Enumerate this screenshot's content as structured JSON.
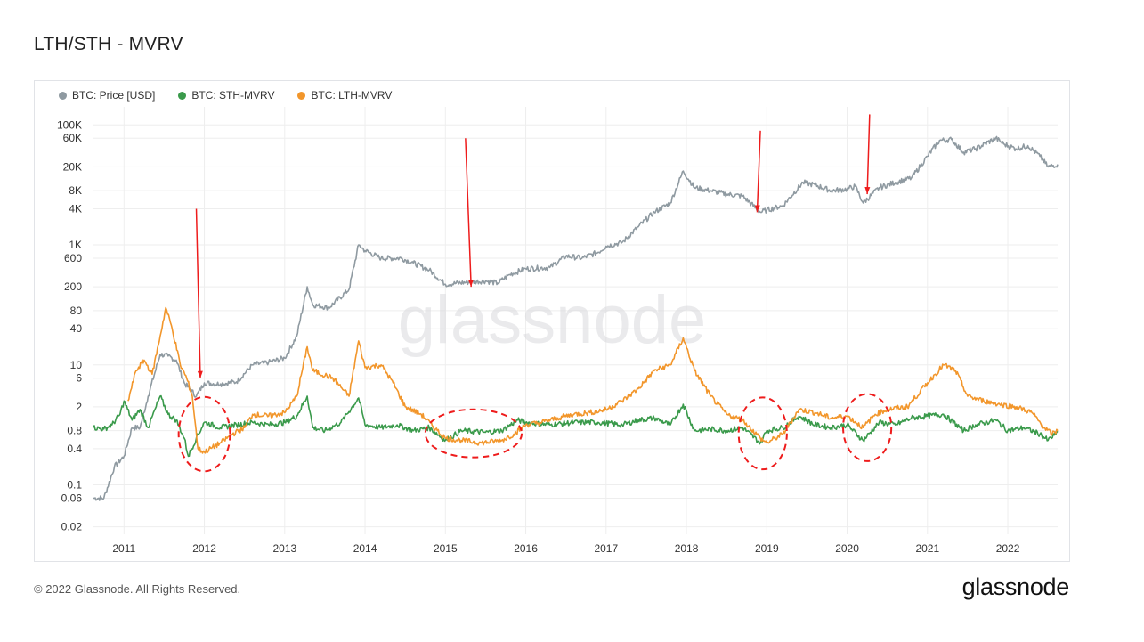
{
  "page": {
    "title": "LTH/STH - MVRV",
    "copyright": "© 2022 Glassnode. All Rights Reserved.",
    "logo_text": "glassnode",
    "watermark": "glassnode"
  },
  "colors": {
    "price": "#8f9aa1",
    "sth": "#3a9a4b",
    "lth": "#f2962b",
    "annotation": "#ee1c1c",
    "grid": "#eeeeee"
  },
  "chart_data": {
    "type": "line",
    "title": "LTH/STH - MVRV",
    "y_scale": "log",
    "ylim": [
      0.015,
      200000
    ],
    "xlim": [
      2010.62,
      2022.62
    ],
    "grid": true,
    "legend_position": "top-left",
    "legend": [
      "BTC: Price [USD]",
      "BTC: STH-MVRV",
      "BTC: LTH-MVRV"
    ],
    "x_ticks": [
      2011,
      2012,
      2013,
      2014,
      2015,
      2016,
      2017,
      2018,
      2019,
      2020,
      2021,
      2022
    ],
    "x_tick_labels": [
      "2011",
      "2012",
      "2013",
      "2014",
      "2015",
      "2016",
      "2017",
      "2018",
      "2019",
      "2020",
      "2021",
      "2022"
    ],
    "y_ticks": [
      0.02,
      0.06,
      0.1,
      0.4,
      0.8,
      2,
      6,
      10,
      40,
      80,
      200,
      600,
      1000,
      4000,
      8000,
      20000,
      60000,
      100000
    ],
    "y_tick_labels": [
      "0.02",
      "0.06",
      "0.1",
      "0.4",
      "0.8",
      "2",
      "6",
      "10",
      "40",
      "80",
      "200",
      "600",
      "1K",
      "4K",
      "8K",
      "20K",
      "60K",
      "100K"
    ],
    "series": [
      {
        "name": "BTC: Price [USD]",
        "color": "#8f9aa1",
        "points": [
          [
            2010.62,
            0.06
          ],
          [
            2010.75,
            0.06
          ],
          [
            2010.88,
            0.2
          ],
          [
            2011.0,
            0.3
          ],
          [
            2011.1,
            0.9
          ],
          [
            2011.2,
            0.9
          ],
          [
            2011.3,
            3
          ],
          [
            2011.45,
            15
          ],
          [
            2011.55,
            14
          ],
          [
            2011.65,
            12
          ],
          [
            2011.75,
            5
          ],
          [
            2011.9,
            3
          ],
          [
            2012.0,
            5
          ],
          [
            2012.2,
            4.8
          ],
          [
            2012.4,
            5.2
          ],
          [
            2012.6,
            10
          ],
          [
            2012.8,
            11
          ],
          [
            2013.0,
            13
          ],
          [
            2013.15,
            30
          ],
          [
            2013.28,
            200
          ],
          [
            2013.35,
            100
          ],
          [
            2013.55,
            90
          ],
          [
            2013.8,
            180
          ],
          [
            2013.92,
            1000
          ],
          [
            2014.0,
            800
          ],
          [
            2014.2,
            600
          ],
          [
            2014.45,
            600
          ],
          [
            2014.6,
            500
          ],
          [
            2014.8,
            380
          ],
          [
            2015.0,
            220
          ],
          [
            2015.3,
            240
          ],
          [
            2015.5,
            250
          ],
          [
            2015.65,
            230
          ],
          [
            2015.8,
            320
          ],
          [
            2016.0,
            400
          ],
          [
            2016.3,
            420
          ],
          [
            2016.5,
            650
          ],
          [
            2016.7,
            600
          ],
          [
            2016.9,
            750
          ],
          [
            2017.0,
            950
          ],
          [
            2017.2,
            1100
          ],
          [
            2017.4,
            2000
          ],
          [
            2017.6,
            3500
          ],
          [
            2017.8,
            5000
          ],
          [
            2017.96,
            17000
          ],
          [
            2018.1,
            9000
          ],
          [
            2018.3,
            8000
          ],
          [
            2018.5,
            7000
          ],
          [
            2018.7,
            6500
          ],
          [
            2018.92,
            3500
          ],
          [
            2019.0,
            3800
          ],
          [
            2019.2,
            4500
          ],
          [
            2019.45,
            11000
          ],
          [
            2019.6,
            10000
          ],
          [
            2019.8,
            8000
          ],
          [
            2020.0,
            8500
          ],
          [
            2020.1,
            9500
          ],
          [
            2020.2,
            5000
          ],
          [
            2020.4,
            9000
          ],
          [
            2020.6,
            11000
          ],
          [
            2020.8,
            13000
          ],
          [
            2021.0,
            30000
          ],
          [
            2021.15,
            55000
          ],
          [
            2021.3,
            57000
          ],
          [
            2021.45,
            35000
          ],
          [
            2021.6,
            40000
          ],
          [
            2021.85,
            60000
          ],
          [
            2021.95,
            48000
          ],
          [
            2022.1,
            40000
          ],
          [
            2022.25,
            45000
          ],
          [
            2022.4,
            30000
          ],
          [
            2022.5,
            20000
          ],
          [
            2022.62,
            22000
          ]
        ]
      },
      {
        "name": "BTC: STH-MVRV",
        "color": "#3a9a4b",
        "points": [
          [
            2010.62,
            0.9
          ],
          [
            2010.75,
            0.85
          ],
          [
            2010.85,
            1.0
          ],
          [
            2010.95,
            1.5
          ],
          [
            2011.0,
            2.5
          ],
          [
            2011.1,
            1.2
          ],
          [
            2011.2,
            1.8
          ],
          [
            2011.3,
            0.9
          ],
          [
            2011.4,
            2.0
          ],
          [
            2011.45,
            3.0
          ],
          [
            2011.55,
            1.5
          ],
          [
            2011.65,
            1.2
          ],
          [
            2011.75,
            0.6
          ],
          [
            2011.8,
            0.3
          ],
          [
            2011.9,
            0.6
          ],
          [
            2012.0,
            1.1
          ],
          [
            2012.2,
            0.9
          ],
          [
            2012.4,
            1.0
          ],
          [
            2012.6,
            1.1
          ],
          [
            2012.8,
            1.0
          ],
          [
            2013.0,
            1.1
          ],
          [
            2013.15,
            1.4
          ],
          [
            2013.28,
            3.0
          ],
          [
            2013.35,
            0.9
          ],
          [
            2013.5,
            0.8
          ],
          [
            2013.7,
            1.1
          ],
          [
            2013.92,
            2.8
          ],
          [
            2014.0,
            1.0
          ],
          [
            2014.2,
            0.9
          ],
          [
            2014.4,
            1.0
          ],
          [
            2014.6,
            0.8
          ],
          [
            2014.8,
            0.9
          ],
          [
            2015.0,
            0.55
          ],
          [
            2015.2,
            0.8
          ],
          [
            2015.5,
            0.75
          ],
          [
            2015.7,
            0.8
          ],
          [
            2015.9,
            1.2
          ],
          [
            2016.0,
            1.1
          ],
          [
            2016.3,
            1.0
          ],
          [
            2016.6,
            1.1
          ],
          [
            2016.9,
            1.1
          ],
          [
            2017.2,
            1.0
          ],
          [
            2017.4,
            1.2
          ],
          [
            2017.6,
            1.3
          ],
          [
            2017.8,
            1.0
          ],
          [
            2017.96,
            2.2
          ],
          [
            2018.1,
            0.8
          ],
          [
            2018.3,
            0.85
          ],
          [
            2018.5,
            0.8
          ],
          [
            2018.7,
            0.9
          ],
          [
            2018.92,
            0.5
          ],
          [
            2019.0,
            0.8
          ],
          [
            2019.2,
            0.9
          ],
          [
            2019.4,
            1.4
          ],
          [
            2019.6,
            1.0
          ],
          [
            2019.8,
            0.9
          ],
          [
            2020.0,
            1.0
          ],
          [
            2020.2,
            0.55
          ],
          [
            2020.4,
            1.1
          ],
          [
            2020.6,
            1.0
          ],
          [
            2020.8,
            1.3
          ],
          [
            2021.0,
            1.4
          ],
          [
            2021.2,
            1.5
          ],
          [
            2021.45,
            0.8
          ],
          [
            2021.6,
            1.0
          ],
          [
            2021.85,
            1.2
          ],
          [
            2022.0,
            0.8
          ],
          [
            2022.2,
            0.9
          ],
          [
            2022.4,
            0.7
          ],
          [
            2022.5,
            0.55
          ],
          [
            2022.62,
            0.75
          ]
        ]
      },
      {
        "name": "BTC: LTH-MVRV",
        "color": "#f2962b",
        "points": [
          [
            2011.05,
            2.5
          ],
          [
            2011.15,
            8
          ],
          [
            2011.25,
            12
          ],
          [
            2011.35,
            7
          ],
          [
            2011.45,
            30
          ],
          [
            2011.52,
            90
          ],
          [
            2011.6,
            40
          ],
          [
            2011.7,
            10
          ],
          [
            2011.78,
            6
          ],
          [
            2011.85,
            3
          ],
          [
            2011.92,
            0.4
          ],
          [
            2012.0,
            0.35
          ],
          [
            2012.2,
            0.5
          ],
          [
            2012.35,
            0.7
          ],
          [
            2012.5,
            0.9
          ],
          [
            2012.6,
            1.5
          ],
          [
            2012.8,
            1.4
          ],
          [
            2013.0,
            1.6
          ],
          [
            2013.15,
            3
          ],
          [
            2013.28,
            20
          ],
          [
            2013.35,
            8
          ],
          [
            2013.6,
            6
          ],
          [
            2013.8,
            3
          ],
          [
            2013.92,
            25
          ],
          [
            2014.0,
            9
          ],
          [
            2014.2,
            10
          ],
          [
            2014.35,
            5
          ],
          [
            2014.5,
            2
          ],
          [
            2014.7,
            1.5
          ],
          [
            2014.9,
            0.8
          ],
          [
            2015.0,
            0.6
          ],
          [
            2015.2,
            0.55
          ],
          [
            2015.45,
            0.5
          ],
          [
            2015.7,
            0.55
          ],
          [
            2015.85,
            0.7
          ],
          [
            2016.0,
            1.0
          ],
          [
            2016.2,
            1.1
          ],
          [
            2016.4,
            1.3
          ],
          [
            2016.6,
            1.5
          ],
          [
            2016.8,
            1.6
          ],
          [
            2017.0,
            1.8
          ],
          [
            2017.2,
            2.5
          ],
          [
            2017.4,
            4
          ],
          [
            2017.6,
            8
          ],
          [
            2017.8,
            10
          ],
          [
            2017.96,
            28
          ],
          [
            2018.1,
            8
          ],
          [
            2018.3,
            3
          ],
          [
            2018.5,
            1.5
          ],
          [
            2018.7,
            1.2
          ],
          [
            2018.92,
            0.6
          ],
          [
            2019.0,
            0.5
          ],
          [
            2019.2,
            0.7
          ],
          [
            2019.4,
            1.8
          ],
          [
            2019.6,
            1.6
          ],
          [
            2019.8,
            1.3
          ],
          [
            2020.0,
            1.4
          ],
          [
            2020.2,
            0.9
          ],
          [
            2020.35,
            1.5
          ],
          [
            2020.5,
            1.8
          ],
          [
            2020.75,
            2
          ],
          [
            2021.0,
            5
          ],
          [
            2021.2,
            10
          ],
          [
            2021.35,
            8
          ],
          [
            2021.5,
            3
          ],
          [
            2021.7,
            2.5
          ],
          [
            2021.9,
            2.2
          ],
          [
            2022.1,
            2
          ],
          [
            2022.3,
            1.6
          ],
          [
            2022.45,
            0.9
          ],
          [
            2022.55,
            0.7
          ],
          [
            2022.62,
            0.8
          ]
        ]
      }
    ],
    "annotations": {
      "arrows": [
        {
          "from": [
            2011.9,
            4000
          ],
          "to": [
            2011.95,
            6
          ]
        },
        {
          "from": [
            2015.25,
            60000
          ],
          "to": [
            2015.32,
            200
          ]
        },
        {
          "from": [
            2018.92,
            80000
          ],
          "to": [
            2018.88,
            3500
          ]
        },
        {
          "from": [
            2020.28,
            150000
          ],
          "to": [
            2020.25,
            7000
          ]
        }
      ],
      "ellipses": [
        {
          "center": [
            2012.0,
            0.7
          ],
          "rx_years": 0.32,
          "ry_decades": 0.62
        },
        {
          "center": [
            2015.35,
            0.72
          ],
          "rx_years": 0.6,
          "ry_decades": 0.4
        },
        {
          "center": [
            2018.95,
            0.72
          ],
          "rx_years": 0.3,
          "ry_decades": 0.6
        },
        {
          "center": [
            2020.25,
            0.9
          ],
          "rx_years": 0.3,
          "ry_decades": 0.56
        }
      ]
    }
  }
}
